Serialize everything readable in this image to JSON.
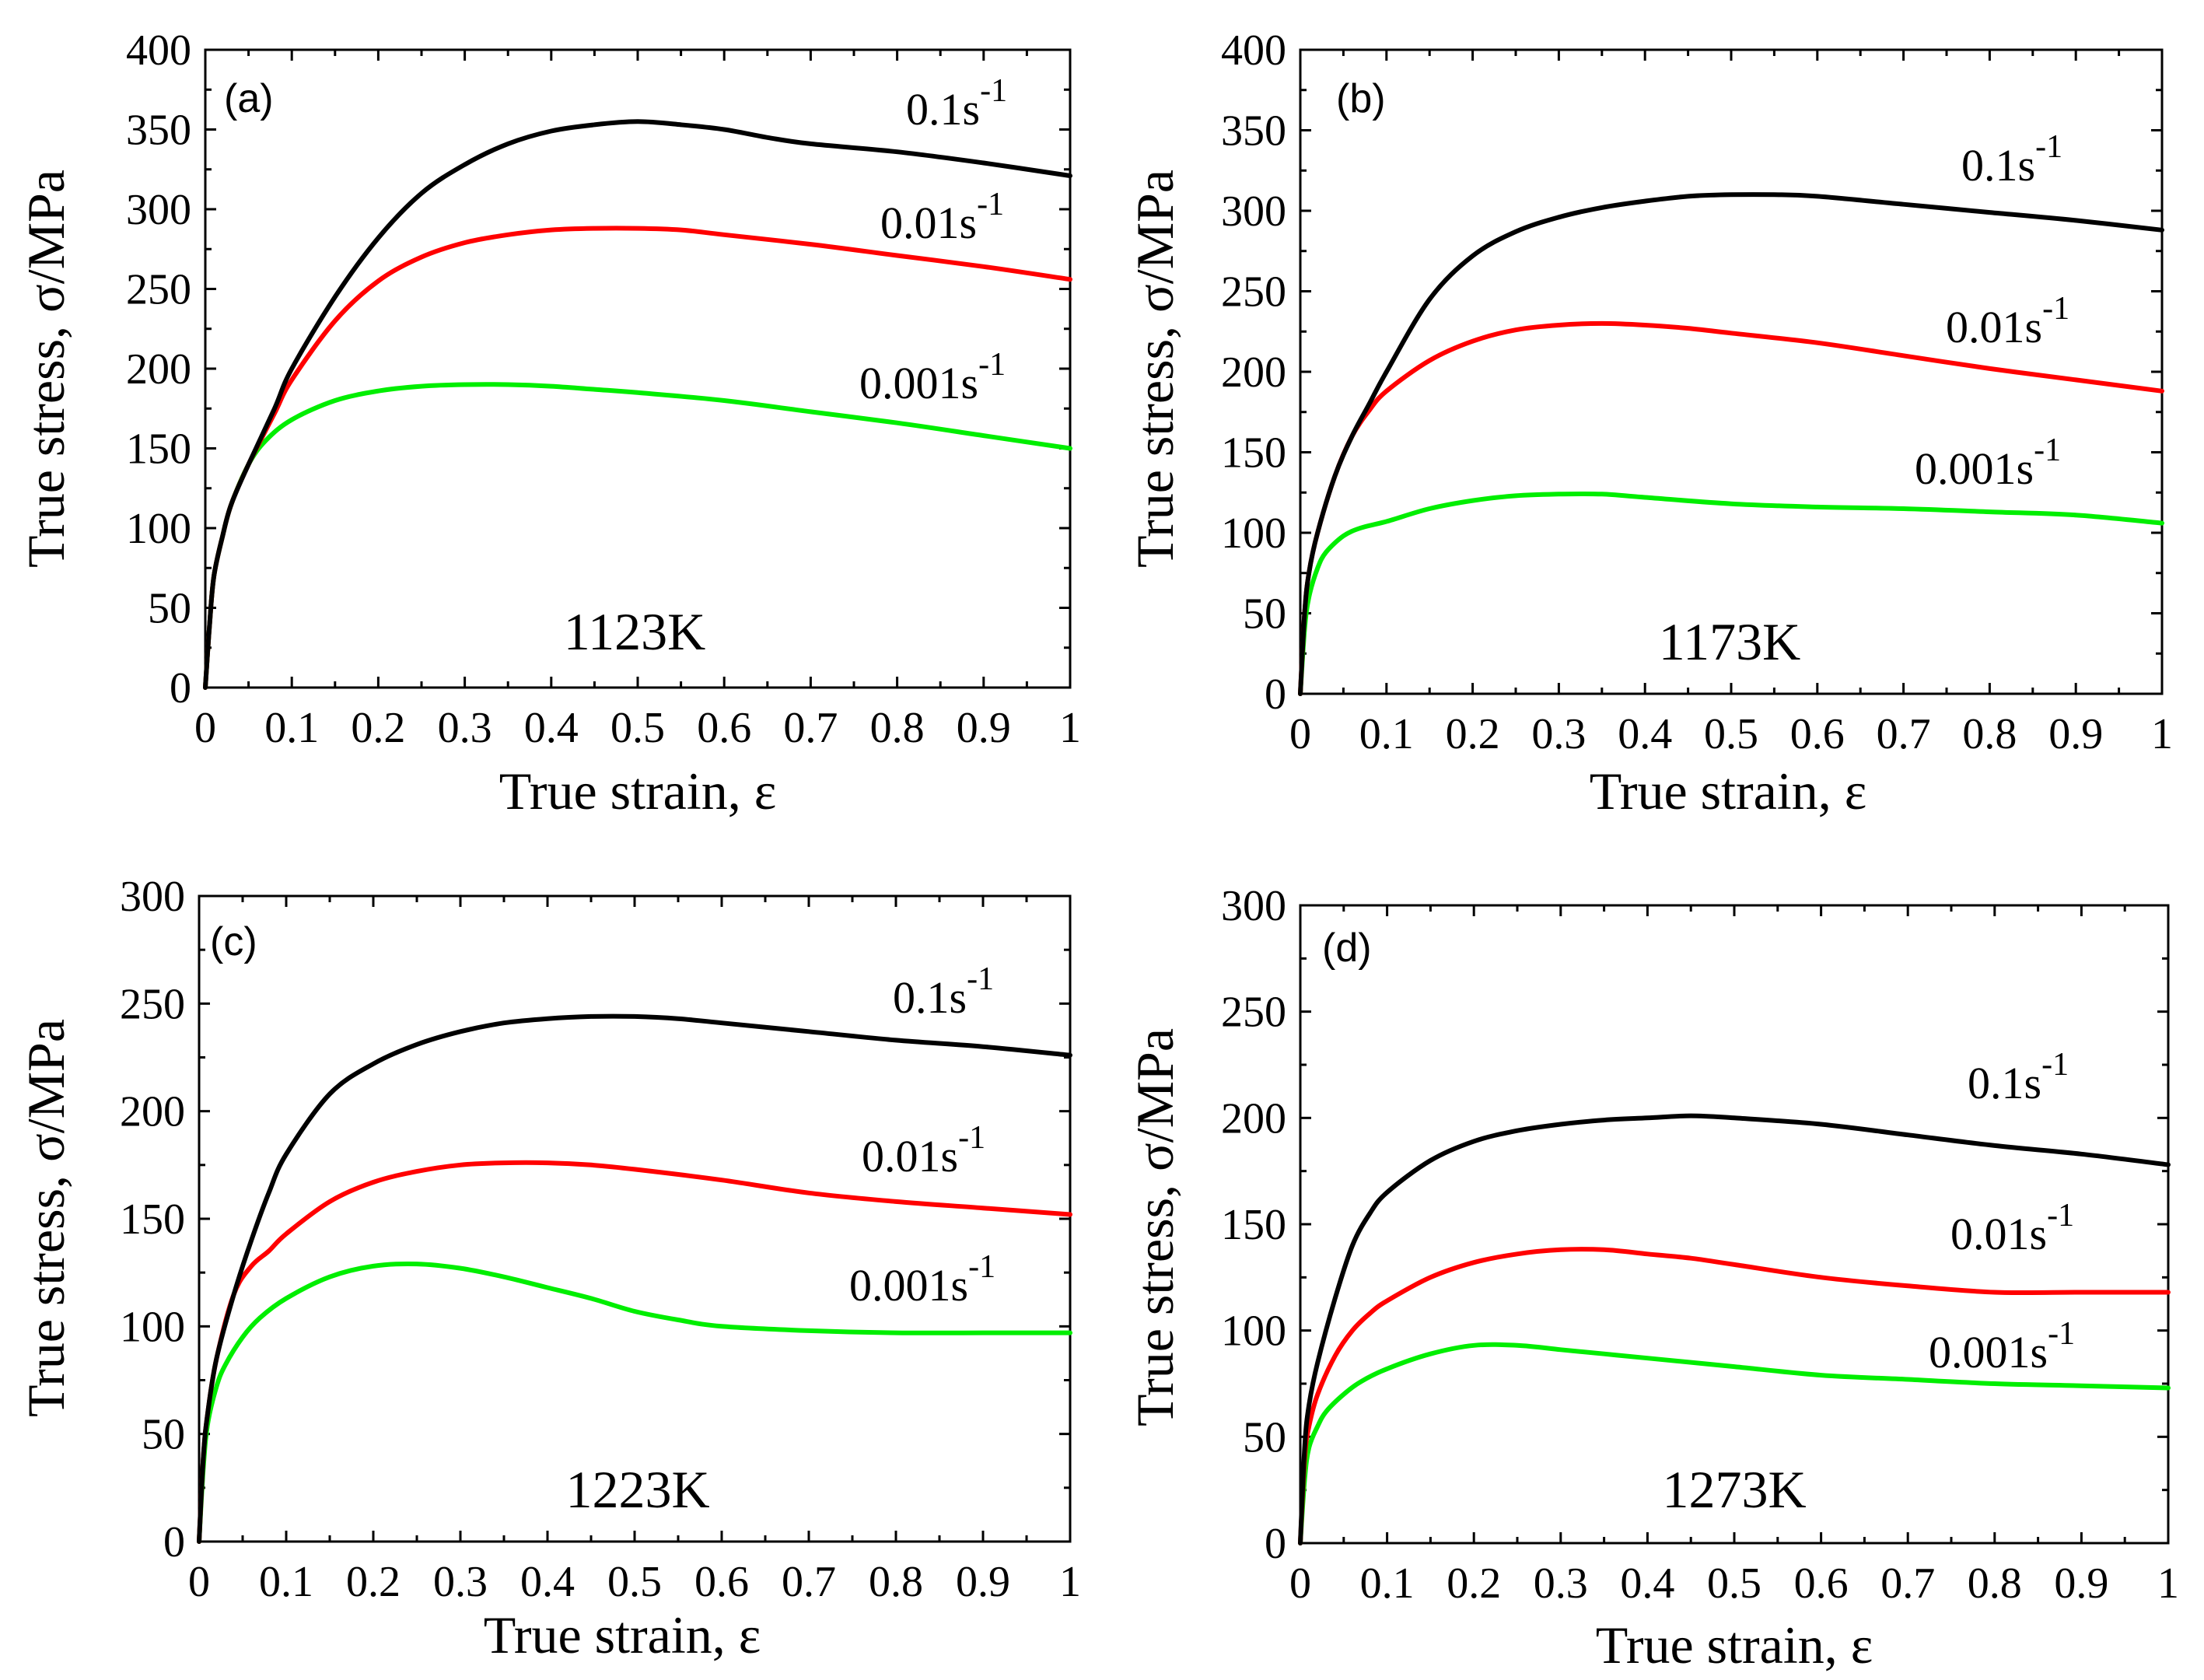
{
  "chart_data": [
    {
      "type": "line",
      "panel_label": "(a)",
      "temperature_label": "1123K",
      "xlabel": "True strain, ε",
      "ylabel": "True stress, σ/MPa",
      "xlim": [
        0,
        1
      ],
      "ylim": [
        0,
        400
      ],
      "x_ticks": [
        "0",
        "0.1",
        "0.2",
        "0.3",
        "0.4",
        "0.5",
        "0.6",
        "0.7",
        "0.8",
        "0.9",
        "1"
      ],
      "y_ticks": [
        "0",
        "50",
        "100",
        "150",
        "200",
        "250",
        "300",
        "350",
        "400"
      ],
      "series": [
        {
          "name": "0.1s-1",
          "label_base": "0.1s",
          "label_sup": "-1",
          "color": "#000000",
          "x": [
            0,
            0.005,
            0.01,
            0.02,
            0.03,
            0.05,
            0.08,
            0.1,
            0.15,
            0.2,
            0.25,
            0.3,
            0.35,
            0.4,
            0.45,
            0.5,
            0.55,
            0.6,
            0.65,
            0.7,
            0.8,
            0.9,
            1.0
          ],
          "y": [
            0,
            40,
            70,
            95,
            115,
            140,
            175,
            200,
            245,
            282,
            310,
            328,
            341,
            349,
            353,
            355,
            353,
            350,
            345,
            341,
            336,
            329,
            321
          ]
        },
        {
          "name": "0.01s-1",
          "label_base": "0.01s",
          "label_sup": "-1",
          "color": "#ff0000",
          "x": [
            0,
            0.005,
            0.01,
            0.02,
            0.03,
            0.05,
            0.08,
            0.1,
            0.15,
            0.2,
            0.25,
            0.3,
            0.35,
            0.4,
            0.45,
            0.5,
            0.55,
            0.6,
            0.7,
            0.8,
            0.9,
            1.0
          ],
          "y": [
            0,
            40,
            70,
            95,
            115,
            140,
            172,
            193,
            230,
            255,
            270,
            279,
            284,
            287,
            288,
            288,
            287,
            284,
            278,
            271,
            264,
            256
          ]
        },
        {
          "name": "0.001s-1",
          "label_base": "0.001s",
          "label_sup": "-1",
          "color": "#00ee00",
          "x": [
            0,
            0.005,
            0.01,
            0.02,
            0.03,
            0.05,
            0.07,
            0.1,
            0.15,
            0.2,
            0.25,
            0.3,
            0.35,
            0.4,
            0.45,
            0.5,
            0.6,
            0.7,
            0.8,
            0.9,
            1.0
          ],
          "y": [
            0,
            40,
            70,
            95,
            115,
            140,
            155,
            168,
            180,
            186,
            189,
            190,
            190,
            189,
            187,
            185,
            180,
            173,
            166,
            158,
            150
          ]
        }
      ]
    },
    {
      "type": "line",
      "panel_label": "(b)",
      "temperature_label": "1173K",
      "xlabel": "True strain, ε",
      "ylabel": "True stress, σ/MPa",
      "xlim": [
        0,
        1
      ],
      "ylim": [
        0,
        400
      ],
      "x_ticks": [
        "0",
        "0.1",
        "0.2",
        "0.3",
        "0.4",
        "0.5",
        "0.6",
        "0.7",
        "0.8",
        "0.9",
        "1"
      ],
      "y_ticks": [
        "0",
        "50",
        "100",
        "150",
        "200",
        "250",
        "300",
        "350",
        "400"
      ],
      "series": [
        {
          "name": "0.1s-1",
          "label_base": "0.1s",
          "label_sup": "-1",
          "color": "#000000",
          "x": [
            0,
            0.005,
            0.01,
            0.02,
            0.04,
            0.06,
            0.08,
            0.1,
            0.15,
            0.2,
            0.25,
            0.3,
            0.35,
            0.4,
            0.45,
            0.5,
            0.55,
            0.6,
            0.7,
            0.8,
            0.9,
            1.0
          ],
          "y": [
            0,
            50,
            75,
            100,
            135,
            160,
            180,
            200,
            245,
            272,
            287,
            296,
            302,
            306,
            309,
            310,
            310,
            309,
            304,
            299,
            294,
            288
          ]
        },
        {
          "name": "0.01s-1",
          "label_base": "0.01s",
          "label_sup": "-1",
          "color": "#ff0000",
          "x": [
            0,
            0.005,
            0.01,
            0.02,
            0.04,
            0.06,
            0.08,
            0.1,
            0.15,
            0.2,
            0.25,
            0.3,
            0.35,
            0.4,
            0.45,
            0.5,
            0.6,
            0.7,
            0.8,
            0.9,
            1.0
          ],
          "y": [
            0,
            50,
            75,
            100,
            135,
            160,
            176,
            188,
            207,
            219,
            226,
            229,
            230,
            229,
            227,
            224,
            218,
            210,
            202,
            195,
            188
          ]
        },
        {
          "name": "0.001s-1",
          "label_base": "0.001s",
          "label_sup": "-1",
          "color": "#00ee00",
          "x": [
            0,
            0.005,
            0.01,
            0.02,
            0.03,
            0.05,
            0.07,
            0.1,
            0.15,
            0.2,
            0.25,
            0.3,
            0.35,
            0.4,
            0.5,
            0.6,
            0.7,
            0.8,
            0.9,
            1.0
          ],
          "y": [
            0,
            40,
            60,
            78,
            88,
            98,
            103,
            107,
            115,
            120,
            123,
            124,
            124,
            122,
            118,
            116,
            115,
            113,
            111,
            106
          ]
        }
      ]
    },
    {
      "type": "line",
      "panel_label": "(c)",
      "temperature_label": "1223K",
      "xlabel": "True strain, ε",
      "ylabel": "True stress, σ/MPa",
      "xlim": [
        0,
        1
      ],
      "ylim": [
        0,
        300
      ],
      "x_ticks": [
        "0",
        "0.1",
        "0.2",
        "0.3",
        "0.4",
        "0.5",
        "0.6",
        "0.7",
        "0.8",
        "0.9",
        "1"
      ],
      "y_ticks": [
        "0",
        "50",
        "100",
        "150",
        "200",
        "250",
        "300"
      ],
      "series": [
        {
          "name": "0.1s-1",
          "label_base": "0.1s",
          "label_sup": "-1",
          "color": "#000000",
          "x": [
            0,
            0.005,
            0.01,
            0.02,
            0.04,
            0.06,
            0.08,
            0.1,
            0.15,
            0.2,
            0.25,
            0.3,
            0.35,
            0.4,
            0.45,
            0.5,
            0.55,
            0.6,
            0.7,
            0.8,
            0.9,
            1.0
          ],
          "y": [
            0,
            40,
            60,
            85,
            115,
            140,
            162,
            180,
            208,
            222,
            231,
            237,
            241,
            243,
            244,
            244,
            243,
            241,
            237,
            233,
            230,
            226
          ]
        },
        {
          "name": "0.01s-1",
          "label_base": "0.01s",
          "label_sup": "-1",
          "color": "#ff0000",
          "x": [
            0,
            0.005,
            0.01,
            0.02,
            0.04,
            0.06,
            0.08,
            0.1,
            0.15,
            0.2,
            0.25,
            0.3,
            0.35,
            0.4,
            0.45,
            0.5,
            0.6,
            0.7,
            0.8,
            0.9,
            1.0
          ],
          "y": [
            0,
            40,
            60,
            85,
            115,
            128,
            135,
            143,
            158,
            167,
            172,
            175,
            176,
            176,
            175,
            173,
            168,
            162,
            158,
            155,
            152
          ]
        },
        {
          "name": "0.001s-1",
          "label_base": "0.001s",
          "label_sup": "-1",
          "color": "#00ee00",
          "x": [
            0,
            0.005,
            0.01,
            0.02,
            0.03,
            0.05,
            0.07,
            0.1,
            0.15,
            0.2,
            0.25,
            0.3,
            0.35,
            0.4,
            0.45,
            0.5,
            0.55,
            0.6,
            0.7,
            0.8,
            0.9,
            1.0
          ],
          "y": [
            0,
            35,
            55,
            72,
            82,
            95,
            104,
            113,
            123,
            128,
            129,
            127,
            123,
            118,
            113,
            107,
            103,
            100,
            98,
            97,
            97,
            97
          ]
        }
      ]
    },
    {
      "type": "line",
      "panel_label": "(d)",
      "temperature_label": "1273K",
      "xlabel": "True strain, ε",
      "ylabel": "True stress, σ/MPa",
      "xlim": [
        0,
        1
      ],
      "ylim": [
        0,
        300
      ],
      "x_ticks": [
        "0",
        "0.1",
        "0.2",
        "0.3",
        "0.4",
        "0.5",
        "0.6",
        "0.7",
        "0.8",
        "0.9",
        "1"
      ],
      "y_ticks": [
        "0",
        "50",
        "100",
        "150",
        "200",
        "250",
        "300"
      ],
      "series": [
        {
          "name": "0.1s-1",
          "label_base": "0.1s",
          "label_sup": "-1",
          "color": "#000000",
          "x": [
            0,
            0.005,
            0.01,
            0.02,
            0.04,
            0.06,
            0.08,
            0.1,
            0.15,
            0.2,
            0.25,
            0.3,
            0.35,
            0.4,
            0.45,
            0.5,
            0.6,
            0.7,
            0.8,
            0.9,
            1.0
          ],
          "y": [
            0,
            45,
            65,
            85,
            115,
            140,
            155,
            165,
            180,
            189,
            194,
            197,
            199,
            200,
            201,
            200,
            197,
            192,
            187,
            183,
            178
          ]
        },
        {
          "name": "0.01s-1",
          "label_base": "0.01s",
          "label_sup": "-1",
          "color": "#ff0000",
          "x": [
            0,
            0.005,
            0.01,
            0.02,
            0.04,
            0.06,
            0.08,
            0.1,
            0.15,
            0.2,
            0.25,
            0.3,
            0.35,
            0.4,
            0.45,
            0.5,
            0.6,
            0.7,
            0.8,
            0.9,
            1.0
          ],
          "y": [
            0,
            40,
            55,
            70,
            88,
            100,
            108,
            114,
            125,
            132,
            136,
            138,
            138,
            136,
            134,
            131,
            125,
            121,
            118,
            118,
            118
          ]
        },
        {
          "name": "0.001s-1",
          "label_base": "0.001s",
          "label_sup": "-1",
          "color": "#00ee00",
          "x": [
            0,
            0.005,
            0.01,
            0.02,
            0.03,
            0.05,
            0.07,
            0.1,
            0.15,
            0.2,
            0.25,
            0.3,
            0.35,
            0.4,
            0.5,
            0.6,
            0.7,
            0.8,
            0.9,
            1.0
          ],
          "y": [
            0,
            30,
            45,
            55,
            62,
            70,
            76,
            82,
            89,
            93,
            93,
            91,
            89,
            87,
            83,
            79,
            77,
            75,
            74,
            73
          ]
        }
      ]
    }
  ]
}
